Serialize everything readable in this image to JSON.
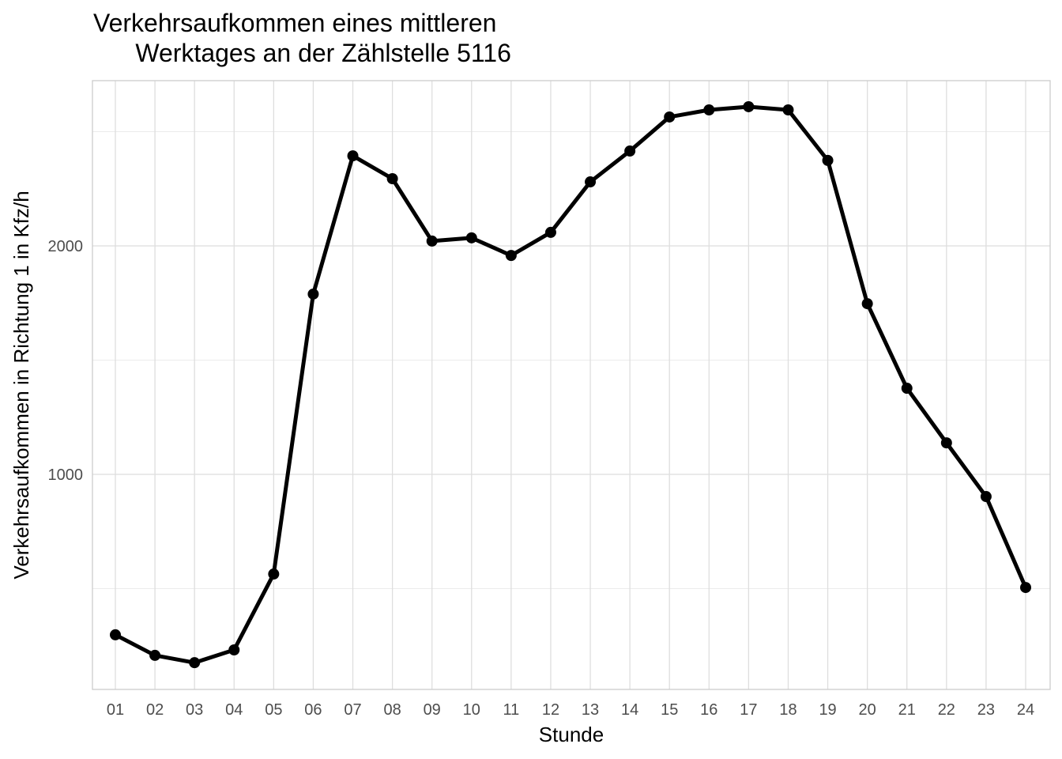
{
  "chart_data": {
    "type": "line",
    "title": "Verkehrsaufkommen eines mittleren\n      Werktages an der Zählstelle 5116",
    "x_label": "Stunde",
    "y_label": "Verkehrsaufkommen in Richtung 1 in Kfz/h",
    "categories": [
      "01",
      "02",
      "03",
      "04",
      "05",
      "06",
      "07",
      "08",
      "09",
      "10",
      "11",
      "12",
      "13",
      "14",
      "15",
      "16",
      "17",
      "18",
      "19",
      "20",
      "21",
      "22",
      "23",
      "24"
    ],
    "values": [
      298,
      208,
      176,
      232,
      564,
      1789,
      2394,
      2294,
      2021,
      2035,
      1958,
      2059,
      2280,
      2415,
      2564,
      2595,
      2609,
      2595,
      2374,
      1747,
      1377,
      1138,
      903,
      505
    ],
    "color": "#000000",
    "ylim": [
      59,
      2723
    ],
    "yticks": [
      1000,
      2000
    ],
    "minor_yticks": [
      500,
      1500,
      2500
    ],
    "grid": true
  }
}
